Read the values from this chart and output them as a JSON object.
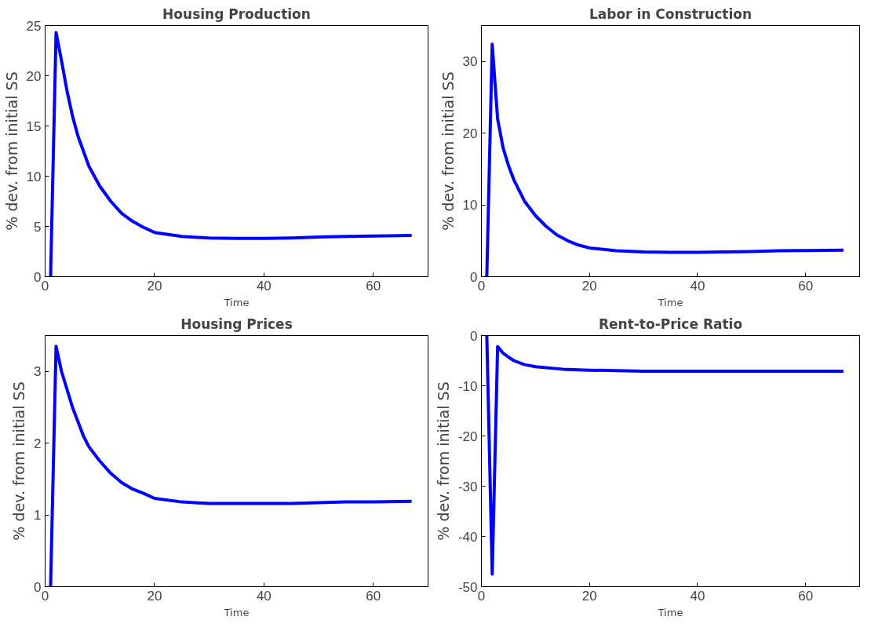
{
  "chart_data": [
    {
      "type": "line",
      "title": "Housing Production",
      "xlabel": "Time",
      "ylabel": "% dev. from initial SS",
      "xlim": [
        0,
        70
      ],
      "xticks": [
        0,
        20,
        40,
        60
      ],
      "ylim": [
        0,
        25
      ],
      "yticks": [
        0,
        5,
        10,
        15,
        20,
        25
      ],
      "grid": false,
      "line_style": "solid",
      "series": [
        {
          "color": "#0000ff",
          "x": [
            1,
            2,
            3,
            4,
            5,
            6,
            7,
            8,
            10,
            12,
            14,
            16,
            18,
            20,
            25,
            30,
            35,
            40,
            45,
            50,
            55,
            60,
            67
          ],
          "values": [
            0,
            24.3,
            21.5,
            18.5,
            16,
            14,
            12.5,
            11,
            9,
            7.5,
            6.3,
            5.5,
            4.9,
            4.4,
            4.0,
            3.85,
            3.8,
            3.8,
            3.85,
            3.95,
            4.0,
            4.05,
            4.1
          ]
        }
      ]
    },
    {
      "type": "line",
      "title": "Labor in Construction",
      "xlabel": "Time",
      "ylabel": "% dev. from initial SS",
      "xlim": [
        0,
        70
      ],
      "xticks": [
        0,
        20,
        40,
        60
      ],
      "ylim": [
        0,
        35
      ],
      "yticks": [
        0,
        10,
        20,
        30
      ],
      "grid": false,
      "line_style": "solid",
      "series": [
        {
          "color": "#0000ff",
          "x": [
            1,
            2,
            3,
            4,
            5,
            6,
            7,
            8,
            10,
            12,
            14,
            16,
            18,
            20,
            25,
            30,
            35,
            40,
            45,
            50,
            55,
            60,
            67
          ],
          "values": [
            0,
            32.4,
            22,
            18,
            15.5,
            13.5,
            12,
            10.5,
            8.5,
            7,
            5.8,
            5,
            4.4,
            4.0,
            3.6,
            3.45,
            3.4,
            3.4,
            3.45,
            3.5,
            3.6,
            3.65,
            3.7
          ]
        }
      ]
    },
    {
      "type": "line",
      "title": "Housing Prices",
      "xlabel": "Time",
      "ylabel": "% dev. from initial SS",
      "xlim": [
        0,
        70
      ],
      "xticks": [
        0,
        20,
        40,
        60
      ],
      "ylim": [
        0,
        3.5
      ],
      "yticks": [
        0,
        1,
        2,
        3
      ],
      "grid": false,
      "line_style": "solid",
      "series": [
        {
          "color": "#0000ff",
          "x": [
            1,
            2,
            3,
            4,
            5,
            6,
            7,
            8,
            10,
            12,
            14,
            16,
            18,
            20,
            25,
            30,
            35,
            40,
            45,
            50,
            55,
            60,
            67
          ],
          "values": [
            0,
            3.35,
            3.0,
            2.75,
            2.5,
            2.3,
            2.1,
            1.95,
            1.75,
            1.58,
            1.45,
            1.36,
            1.3,
            1.23,
            1.18,
            1.16,
            1.16,
            1.16,
            1.16,
            1.17,
            1.18,
            1.18,
            1.19
          ]
        }
      ]
    },
    {
      "type": "line",
      "title": "Rent-to-Price Ratio",
      "xlabel": "Time",
      "ylabel": "% dev. from initial SS",
      "xlim": [
        0,
        70
      ],
      "xticks": [
        0,
        20,
        40,
        60
      ],
      "ylim": [
        -50,
        0
      ],
      "yticks": [
        -50,
        -40,
        -30,
        -20,
        -10,
        0
      ],
      "grid": false,
      "line_style": "solid",
      "series": [
        {
          "color": "#0000ff",
          "x": [
            1,
            2,
            3,
            4,
            5,
            6,
            8,
            10,
            15,
            20,
            25,
            30,
            40,
            50,
            60,
            67
          ],
          "values": [
            0,
            -47.5,
            -2.2,
            -3.5,
            -4.3,
            -5,
            -5.8,
            -6.2,
            -6.7,
            -6.9,
            -7,
            -7.1,
            -7.1,
            -7.1,
            -7.1,
            -7.1
          ]
        }
      ]
    }
  ]
}
